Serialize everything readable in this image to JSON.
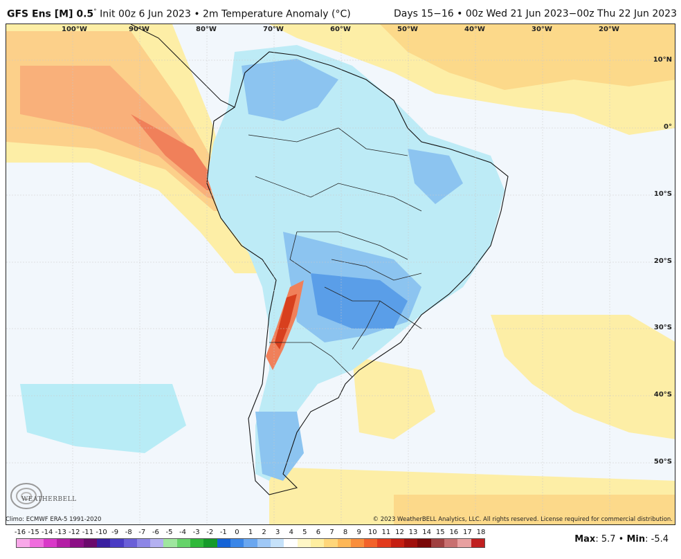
{
  "header": {
    "model": "GFS Ens [M] 0.5",
    "degree": "°",
    "init": " Init 00z 6 Jun 2023 • 2m Temperature Anomaly (°C)",
    "valid": "Days 15−16 • 00z Wed 21 Jun 2023−00z Thu 22 Jun 2023"
  },
  "map": {
    "lon_labels": [
      "100°W",
      "90°W",
      "80°W",
      "70°W",
      "60°W",
      "50°W",
      "40°W",
      "30°W",
      "20°W"
    ],
    "lat_labels": [
      "10°N",
      "0°",
      "10°S",
      "20°S",
      "30°S",
      "40°S",
      "50°S"
    ]
  },
  "logo": {
    "text": "WEATHERBELL"
  },
  "footer": {
    "climo": "Climo: ECMWF ERA-5 1991-2020",
    "copyright": "© 2023 WeatherBELL Analytics, LLC. All rights reserved. License required for commercial distribution."
  },
  "colorbar": {
    "labels": [
      "-16",
      "-15",
      "-14",
      "-13",
      "-12",
      "-11",
      "-10",
      "-9",
      "-8",
      "-7",
      "-6",
      "-5",
      "-4",
      "-3",
      "-2",
      "-1",
      "0",
      "1",
      "2",
      "3",
      "4",
      "5",
      "6",
      "7",
      "8",
      "9",
      "10",
      "11",
      "12",
      "13",
      "14",
      "15",
      "16",
      "17",
      "18"
    ],
    "colors": [
      "#f9a8e9",
      "#ef6ddd",
      "#d938c8",
      "#b41ea5",
      "#8c0f85",
      "#6b0a6c",
      "#3a1fa0",
      "#4a3cc4",
      "#6a5fd8",
      "#8d86e6",
      "#b3b0f0",
      "#9fe69f",
      "#66d36a",
      "#2fb83a",
      "#159a2a",
      "#1563d6",
      "#3a86e8",
      "#6aa7f0",
      "#9fc8f6",
      "#c6e2fa",
      "#ffffff",
      "#fef6c6",
      "#feeea0",
      "#fed67a",
      "#fdb757",
      "#f98e3c",
      "#f2622a",
      "#e23a1c",
      "#c51f12",
      "#a0100c",
      "#7a0808",
      "#a04040",
      "#c87070",
      "#e8a0a0",
      "#c02020"
    ]
  },
  "maxmin": {
    "max_label": "Max",
    "max_value": ": 5.7 • ",
    "min_label": "Min",
    "min_value": ": -5.4"
  }
}
